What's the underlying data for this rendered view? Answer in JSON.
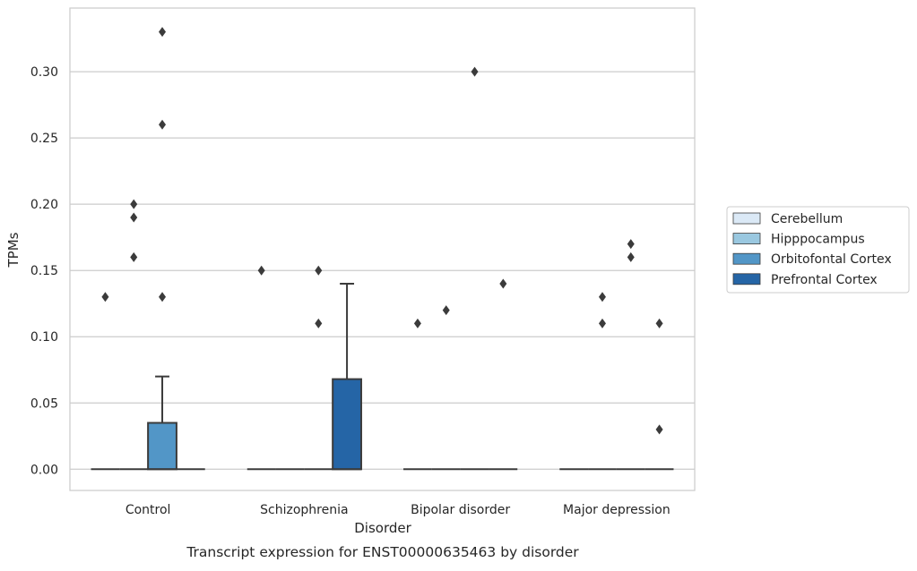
{
  "chart_data": {
    "type": "box",
    "title": "",
    "caption": "Transcript expression for ENST00000635463 by disorder",
    "xlabel": "Disorder",
    "ylabel": "TPMs",
    "ylim": [
      -0.016,
      0.348
    ],
    "yticks": [
      "0.00",
      "0.05",
      "0.10",
      "0.15",
      "0.20",
      "0.25",
      "0.30"
    ],
    "grid": "horizontal",
    "legend_position": "right",
    "categories": [
      "Control",
      "Schizophrenia",
      "Bipolar disorder",
      "Major depression"
    ],
    "series": [
      {
        "name": "Cerebellum",
        "color": "#dbe9f6",
        "boxes": [
          {
            "q1": 0,
            "median": 0,
            "q3": 0,
            "whisker_low": 0,
            "whisker_high": 0,
            "outliers": [
              0.13
            ]
          },
          {
            "q1": 0,
            "median": 0,
            "q3": 0,
            "whisker_low": 0,
            "whisker_high": 0,
            "outliers": [
              0.15
            ]
          },
          {
            "q1": 0,
            "median": 0,
            "q3": 0,
            "whisker_low": 0,
            "whisker_high": 0,
            "outliers": [
              0.11
            ]
          },
          {
            "q1": 0,
            "median": 0,
            "q3": 0,
            "whisker_low": 0,
            "whisker_high": 0,
            "outliers": []
          }
        ]
      },
      {
        "name": "Hipppocampus",
        "color": "#9ac8e0",
        "boxes": [
          {
            "q1": 0,
            "median": 0,
            "q3": 0,
            "whisker_low": 0,
            "whisker_high": 0,
            "outliers": [
              0.16,
              0.19,
              0.2
            ]
          },
          {
            "q1": 0,
            "median": 0,
            "q3": 0,
            "whisker_low": 0,
            "whisker_high": 0,
            "outliers": []
          },
          {
            "q1": 0,
            "median": 0,
            "q3": 0,
            "whisker_low": 0,
            "whisker_high": 0,
            "outliers": [
              0.12
            ]
          },
          {
            "q1": 0,
            "median": 0,
            "q3": 0,
            "whisker_low": 0,
            "whisker_high": 0,
            "outliers": [
              0.11,
              0.13
            ]
          }
        ]
      },
      {
        "name": "Orbitofontal Cortex",
        "color": "#5296c7",
        "boxes": [
          {
            "q1": 0,
            "median": 0,
            "q3": 0.035,
            "whisker_low": 0,
            "whisker_high": 0.07,
            "outliers": [
              0.13,
              0.26,
              0.33
            ]
          },
          {
            "q1": 0,
            "median": 0,
            "q3": 0,
            "whisker_low": 0,
            "whisker_high": 0,
            "outliers": [
              0.11,
              0.15
            ]
          },
          {
            "q1": 0,
            "median": 0,
            "q3": 0,
            "whisker_low": 0,
            "whisker_high": 0,
            "outliers": [
              0.3
            ]
          },
          {
            "q1": 0,
            "median": 0,
            "q3": 0,
            "whisker_low": 0,
            "whisker_high": 0,
            "outliers": [
              0.16,
              0.17
            ]
          }
        ]
      },
      {
        "name": "Prefrontal Cortex",
        "color": "#2565a6",
        "boxes": [
          {
            "q1": 0,
            "median": 0,
            "q3": 0,
            "whisker_low": 0,
            "whisker_high": 0,
            "outliers": []
          },
          {
            "q1": 0,
            "median": 0,
            "q3": 0.068,
            "whisker_low": 0,
            "whisker_high": 0.14,
            "outliers": []
          },
          {
            "q1": 0,
            "median": 0,
            "q3": 0,
            "whisker_low": 0,
            "whisker_high": 0,
            "outliers": [
              0.14
            ]
          },
          {
            "q1": 0,
            "median": 0,
            "q3": 0,
            "whisker_low": 0,
            "whisker_high": 0,
            "outliers": [
              0.03,
              0.11
            ]
          }
        ]
      }
    ]
  }
}
